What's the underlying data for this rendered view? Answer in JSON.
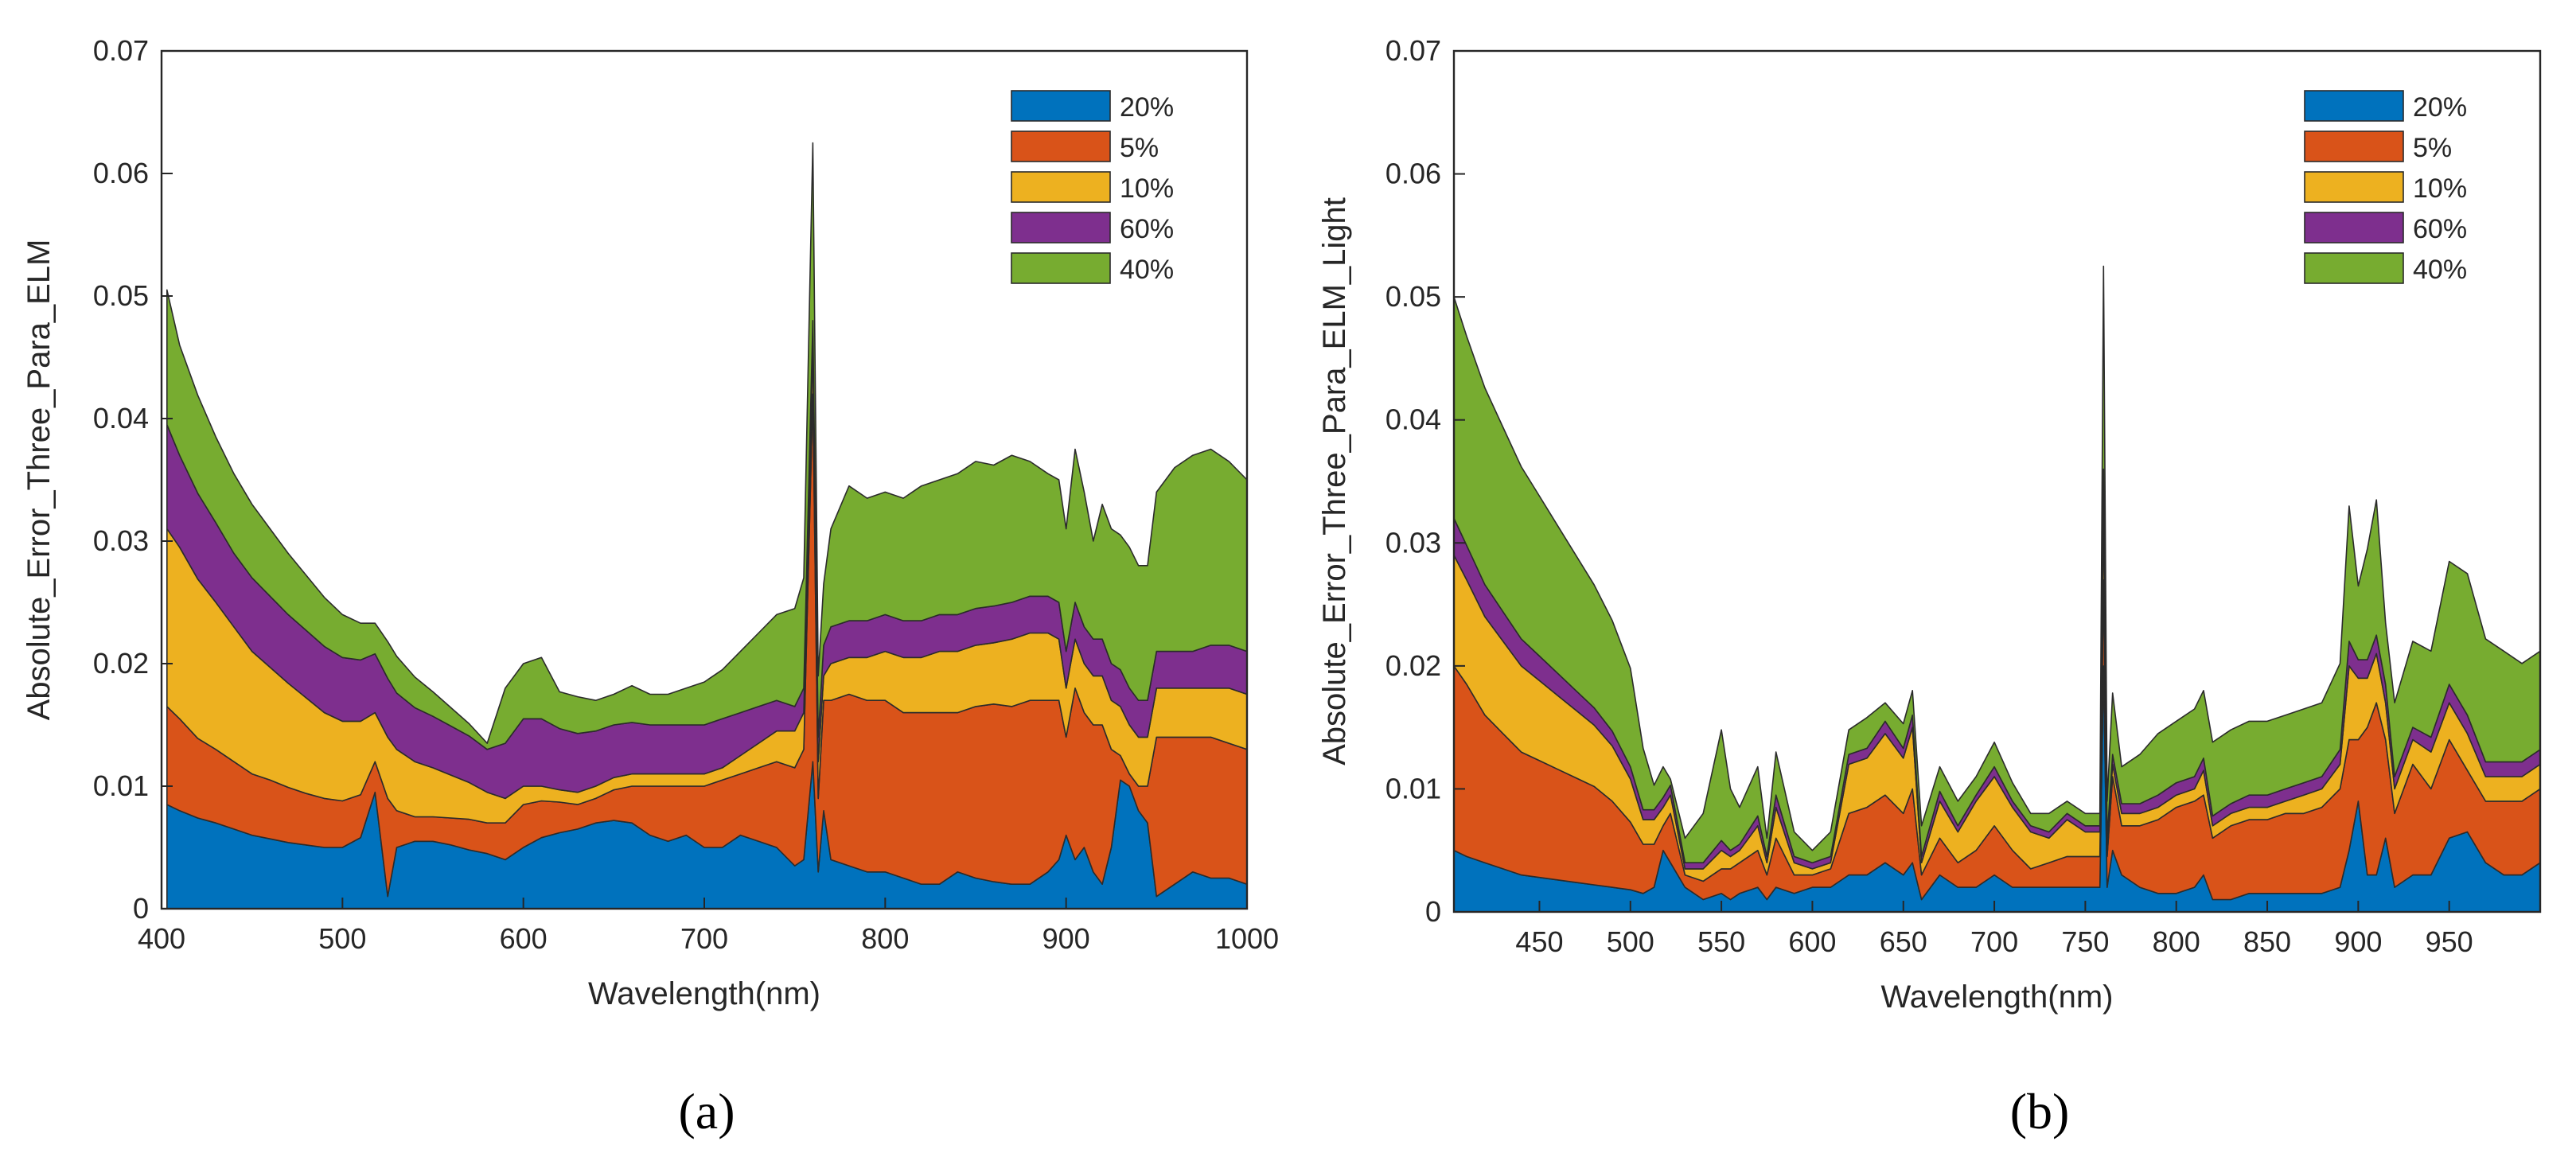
{
  "chart_data": [
    {
      "type": "area",
      "panel_label": "(a)",
      "xlabel": "Wavelength(nm)",
      "ylabel": "Absolute_Error_Three_Para_ELM",
      "xlim": [
        400,
        1000
      ],
      "ylim": [
        0,
        0.07
      ],
      "x_ticks": [
        400,
        500,
        600,
        700,
        800,
        900,
        1000
      ],
      "y_ticks": [
        0,
        0.01,
        0.02,
        0.03,
        0.04,
        0.05,
        0.06,
        0.07
      ],
      "y_tick_labels": [
        "0",
        "0.01",
        "0.02",
        "0.03",
        "0.04",
        "0.05",
        "0.06",
        "0.07"
      ],
      "legend": [
        "20%",
        "5%",
        "10%",
        "60%",
        "40%"
      ],
      "legend_position": "top-right",
      "x": [
        403,
        410,
        420,
        430,
        440,
        450,
        460,
        470,
        480,
        490,
        500,
        510,
        518,
        525,
        530,
        540,
        550,
        560,
        570,
        580,
        590,
        600,
        610,
        620,
        630,
        640,
        650,
        660,
        670,
        680,
        690,
        700,
        710,
        720,
        730,
        740,
        750,
        755,
        760,
        763,
        766,
        770,
        780,
        790,
        800,
        810,
        820,
        830,
        840,
        850,
        860,
        870,
        880,
        890,
        896,
        900,
        905,
        910,
        915,
        920,
        925,
        930,
        935,
        940,
        945,
        950,
        960,
        970,
        980,
        990,
        1000
      ],
      "series": [
        {
          "name": "20%",
          "values": [
            0.0085,
            0.008,
            0.0074,
            0.007,
            0.0065,
            0.006,
            0.0057,
            0.0054,
            0.0052,
            0.005,
            0.005,
            0.0058,
            0.0095,
            0.001,
            0.005,
            0.0055,
            0.0055,
            0.0052,
            0.0048,
            0.0045,
            0.004,
            0.005,
            0.0058,
            0.0062,
            0.0065,
            0.007,
            0.0072,
            0.007,
            0.006,
            0.0055,
            0.006,
            0.005,
            0.005,
            0.006,
            0.0055,
            0.005,
            0.0035,
            0.004,
            0.012,
            0.003,
            0.008,
            0.004,
            0.0035,
            0.003,
            0.003,
            0.0025,
            0.002,
            0.002,
            0.003,
            0.0025,
            0.0022,
            0.002,
            0.002,
            0.003,
            0.004,
            0.006,
            0.004,
            0.005,
            0.003,
            0.002,
            0.005,
            0.0105,
            0.01,
            0.008,
            0.007,
            0.001,
            0.002,
            0.003,
            0.0025,
            0.0025,
            0.002
          ]
        },
        {
          "name": "5%",
          "values": [
            0.008,
            0.0075,
            0.0065,
            0.006,
            0.0055,
            0.005,
            0.0048,
            0.0045,
            0.0042,
            0.004,
            0.0038,
            0.0035,
            0.0025,
            0.008,
            0.003,
            0.002,
            0.002,
            0.0022,
            0.0025,
            0.0025,
            0.003,
            0.0035,
            0.003,
            0.0025,
            0.002,
            0.002,
            0.0025,
            0.003,
            0.004,
            0.0045,
            0.004,
            0.005,
            0.0055,
            0.005,
            0.006,
            0.007,
            0.008,
            0.009,
            0.03,
            0.006,
            0.009,
            0.013,
            0.014,
            0.014,
            0.014,
            0.0135,
            0.014,
            0.014,
            0.013,
            0.014,
            0.0145,
            0.0145,
            0.015,
            0.014,
            0.013,
            0.008,
            0.014,
            0.011,
            0.012,
            0.013,
            0.008,
            0.002,
            0.001,
            0.002,
            0.003,
            0.013,
            0.012,
            0.011,
            0.0115,
            0.011,
            0.011
          ]
        },
        {
          "name": "10%",
          "values": [
            0.0145,
            0.014,
            0.013,
            0.012,
            0.011,
            0.01,
            0.0092,
            0.0085,
            0.0078,
            0.007,
            0.0065,
            0.006,
            0.004,
            0.005,
            0.005,
            0.0045,
            0.004,
            0.0035,
            0.003,
            0.0025,
            0.002,
            0.0015,
            0.0012,
            0.001,
            0.001,
            0.001,
            0.001,
            0.001,
            0.001,
            0.001,
            0.001,
            0.001,
            0.001,
            0.0015,
            0.002,
            0.0025,
            0.003,
            0.003,
            0.004,
            0.003,
            0.002,
            0.003,
            0.003,
            0.0035,
            0.004,
            0.0045,
            0.0045,
            0.005,
            0.005,
            0.005,
            0.005,
            0.0055,
            0.0055,
            0.0055,
            0.005,
            0.004,
            0.004,
            0.004,
            0.004,
            0.004,
            0.004,
            0.004,
            0.004,
            0.004,
            0.004,
            0.004,
            0.004,
            0.004,
            0.004,
            0.0045,
            0.0045
          ]
        },
        {
          "name": "60%",
          "values": [
            0.0085,
            0.0075,
            0.007,
            0.0065,
            0.006,
            0.006,
            0.0058,
            0.0056,
            0.0055,
            0.0054,
            0.0052,
            0.005,
            0.0048,
            0.0048,
            0.0046,
            0.0044,
            0.0042,
            0.004,
            0.0038,
            0.0035,
            0.0045,
            0.0055,
            0.0055,
            0.005,
            0.0048,
            0.0045,
            0.0043,
            0.0042,
            0.004,
            0.004,
            0.004,
            0.004,
            0.004,
            0.0035,
            0.003,
            0.0025,
            0.002,
            0.002,
            0.002,
            0.002,
            0.0025,
            0.003,
            0.003,
            0.003,
            0.003,
            0.003,
            0.003,
            0.003,
            0.003,
            0.003,
            0.003,
            0.003,
            0.003,
            0.003,
            0.003,
            0.003,
            0.003,
            0.003,
            0.003,
            0.003,
            0.003,
            0.003,
            0.003,
            0.003,
            0.003,
            0.003,
            0.003,
            0.003,
            0.0035,
            0.0035,
            0.0035
          ]
        },
        {
          "name": "40%",
          "values": [
            0.011,
            0.009,
            0.008,
            0.007,
            0.0065,
            0.006,
            0.0055,
            0.005,
            0.0045,
            0.004,
            0.0035,
            0.003,
            0.0025,
            0.003,
            0.003,
            0.0025,
            0.002,
            0.0015,
            0.001,
            0.0005,
            0.0045,
            0.0045,
            0.005,
            0.003,
            0.003,
            0.0025,
            0.0025,
            0.003,
            0.0025,
            0.0025,
            0.003,
            0.0035,
            0.004,
            0.005,
            0.006,
            0.007,
            0.008,
            0.009,
            0.0145,
            0.005,
            0.005,
            0.008,
            0.011,
            0.01,
            0.01,
            0.01,
            0.011,
            0.011,
            0.0115,
            0.012,
            0.0115,
            0.012,
            0.011,
            0.01,
            0.01,
            0.01,
            0.0125,
            0.011,
            0.008,
            0.011,
            0.011,
            0.011,
            0.0115,
            0.011,
            0.011,
            0.013,
            0.015,
            0.016,
            0.016,
            0.015,
            0.014
          ]
        }
      ]
    },
    {
      "type": "area",
      "panel_label": "(b)",
      "xlabel": "Wavelength(nm)",
      "ylabel": "Absolute_Error_Three_Para_ELM_Light",
      "xlim": [
        403,
        1000
      ],
      "ylim": [
        0,
        0.07
      ],
      "x_ticks": [
        450,
        500,
        550,
        600,
        650,
        700,
        750,
        800,
        850,
        900,
        950
      ],
      "y_ticks": [
        0,
        0.01,
        0.02,
        0.03,
        0.04,
        0.05,
        0.06,
        0.07
      ],
      "y_tick_labels": [
        "0",
        "0.01",
        "0.02",
        "0.03",
        "0.04",
        "0.05",
        "0.06",
        "0.07"
      ],
      "legend": [
        "20%",
        "5%",
        "10%",
        "60%",
        "40%"
      ],
      "legend_position": "top-right",
      "x": [
        403,
        410,
        420,
        430,
        440,
        450,
        460,
        470,
        480,
        490,
        500,
        507,
        513,
        518,
        522,
        530,
        540,
        550,
        555,
        560,
        570,
        575,
        580,
        590,
        600,
        610,
        620,
        630,
        640,
        650,
        655,
        660,
        670,
        680,
        690,
        700,
        710,
        720,
        730,
        740,
        750,
        755,
        758,
        760,
        762,
        765,
        770,
        780,
        790,
        800,
        810,
        815,
        820,
        830,
        840,
        850,
        860,
        870,
        880,
        890,
        895,
        900,
        905,
        910,
        915,
        920,
        930,
        940,
        950,
        960,
        970,
        980,
        990,
        1000
      ],
      "series": [
        {
          "name": "20%",
          "values": [
            0.005,
            0.0045,
            0.004,
            0.0035,
            0.003,
            0.0028,
            0.0026,
            0.0024,
            0.0022,
            0.002,
            0.0018,
            0.0015,
            0.002,
            0.005,
            0.004,
            0.002,
            0.001,
            0.0015,
            0.001,
            0.0015,
            0.002,
            0.001,
            0.002,
            0.0015,
            0.002,
            0.002,
            0.003,
            0.003,
            0.004,
            0.003,
            0.004,
            0.001,
            0.003,
            0.002,
            0.002,
            0.003,
            0.002,
            0.002,
            0.002,
            0.002,
            0.002,
            0.002,
            0.002,
            0.02,
            0.002,
            0.005,
            0.003,
            0.002,
            0.0015,
            0.0015,
            0.002,
            0.003,
            0.001,
            0.001,
            0.0015,
            0.0015,
            0.0015,
            0.0015,
            0.0015,
            0.002,
            0.005,
            0.009,
            0.003,
            0.003,
            0.006,
            0.002,
            0.003,
            0.003,
            0.006,
            0.0065,
            0.004,
            0.003,
            0.003,
            0.004
          ]
        },
        {
          "name": "5%",
          "values": [
            0.015,
            0.014,
            0.012,
            0.011,
            0.01,
            0.0095,
            0.009,
            0.0085,
            0.008,
            0.007,
            0.0055,
            0.004,
            0.0035,
            0.002,
            0.004,
            0.001,
            0.0015,
            0.002,
            0.0025,
            0.0025,
            0.003,
            0.002,
            0.004,
            0.0015,
            0.001,
            0.0015,
            0.005,
            0.0055,
            0.0055,
            0.005,
            0.006,
            0.002,
            0.003,
            0.002,
            0.003,
            0.004,
            0.003,
            0.0015,
            0.002,
            0.0025,
            0.0025,
            0.0025,
            0.0025,
            0.007,
            0.0025,
            0.006,
            0.004,
            0.005,
            0.006,
            0.007,
            0.007,
            0.0065,
            0.005,
            0.006,
            0.006,
            0.006,
            0.0065,
            0.0065,
            0.007,
            0.008,
            0.009,
            0.005,
            0.012,
            0.014,
            0.008,
            0.006,
            0.009,
            0.007,
            0.008,
            0.005,
            0.005,
            0.006,
            0.006,
            0.006
          ]
        },
        {
          "name": "10%",
          "values": [
            0.009,
            0.0085,
            0.008,
            0.0075,
            0.007,
            0.0065,
            0.006,
            0.0055,
            0.005,
            0.0045,
            0.0035,
            0.002,
            0.002,
            0.0015,
            0.0015,
            0.0005,
            0.001,
            0.0015,
            0.001,
            0.001,
            0.002,
            0.001,
            0.0025,
            0.001,
            0.0005,
            0.0005,
            0.004,
            0.004,
            0.005,
            0.0045,
            0.005,
            0.001,
            0.003,
            0.0025,
            0.004,
            0.004,
            0.0035,
            0.003,
            0.002,
            0.003,
            0.002,
            0.002,
            0.002,
            0.006,
            0.001,
            0.001,
            0.001,
            0.001,
            0.001,
            0.001,
            0.001,
            0.002,
            0.001,
            0.001,
            0.001,
            0.001,
            0.001,
            0.0015,
            0.0015,
            0.002,
            0.006,
            0.005,
            0.004,
            0.004,
            0.003,
            0.002,
            0.002,
            0.003,
            0.003,
            0.003,
            0.002,
            0.002,
            0.002,
            0.002
          ]
        },
        {
          "name": "60%",
          "values": [
            0.003,
            0.0028,
            0.0026,
            0.0024,
            0.0022,
            0.002,
            0.0018,
            0.0016,
            0.0014,
            0.0012,
            0.001,
            0.0008,
            0.0008,
            0.0008,
            0.0008,
            0.0005,
            0.0005,
            0.0008,
            0.0005,
            0.0005,
            0.0008,
            0.0005,
            0.001,
            0.0005,
            0.0005,
            0.0005,
            0.0008,
            0.0008,
            0.001,
            0.0008,
            0.001,
            0.0005,
            0.0008,
            0.0005,
            0.0005,
            0.0008,
            0.0005,
            0.0005,
            0.0005,
            0.0005,
            0.0005,
            0.0005,
            0.0005,
            0.003,
            0.0005,
            0.0008,
            0.0008,
            0.0008,
            0.001,
            0.001,
            0.001,
            0.001,
            0.0008,
            0.0008,
            0.001,
            0.001,
            0.001,
            0.001,
            0.001,
            0.0012,
            0.002,
            0.0015,
            0.0015,
            0.0015,
            0.0015,
            0.001,
            0.001,
            0.0012,
            0.0015,
            0.0015,
            0.0012,
            0.0012,
            0.0012,
            0.0012
          ]
        },
        {
          "name": "40%",
          "values": [
            0.018,
            0.017,
            0.016,
            0.015,
            0.014,
            0.013,
            0.012,
            0.011,
            0.01,
            0.009,
            0.008,
            0.005,
            0.002,
            0.0025,
            0.0005,
            0.002,
            0.004,
            0.009,
            0.005,
            0.003,
            0.004,
            0.0015,
            0.0035,
            0.002,
            0.001,
            0.002,
            0.002,
            0.0025,
            0.0015,
            0.002,
            0.002,
            0.0025,
            0.002,
            0.002,
            0.0015,
            0.002,
            0.0015,
            0.001,
            0.0015,
            0.001,
            0.001,
            0.001,
            0.001,
            0.0165,
            0.003,
            0.005,
            0.003,
            0.004,
            0.005,
            0.005,
            0.0055,
            0.0055,
            0.006,
            0.006,
            0.006,
            0.006,
            0.006,
            0.006,
            0.006,
            0.007,
            0.011,
            0.006,
            0.009,
            0.011,
            0.005,
            0.006,
            0.007,
            0.007,
            0.01,
            0.0115,
            0.01,
            0.009,
            0.008,
            0.008
          ]
        }
      ]
    }
  ],
  "colors": {
    "20%": "#0072BD",
    "5%": "#D95319",
    "10%": "#EDB120",
    "60%": "#7E2F8E",
    "40%": "#77AC30"
  }
}
